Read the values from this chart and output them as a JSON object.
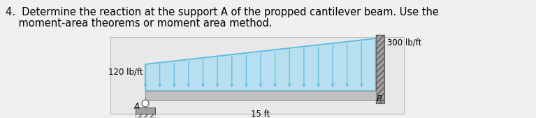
{
  "title_line1": "4.  Determine the reaction at the support A of the propped cantilever beam. Use the",
  "title_line2": "    moment-area theorems or moment area method.",
  "title_fontsize": 10.5,
  "fig_bg": "#f0f0f0",
  "diagram_bg": "#e8e8e8",
  "beam_color": "#c0c0c0",
  "beam_edge_color": "#888888",
  "load_line_color": "#5bbde0",
  "load_fill_color": "#b8dff0",
  "wall_color": "#a0a0a0",
  "wall_edge_color": "#666666",
  "pin_color": "#ffffff",
  "base_color": "#a0a0a0",
  "n_arrows": 17,
  "label_120": "120 lb/ft",
  "label_300": "300 lb/ft",
  "label_15ft": "15 ft",
  "label_A": "A",
  "label_B": "B",
  "text_fontsize": 8.5
}
